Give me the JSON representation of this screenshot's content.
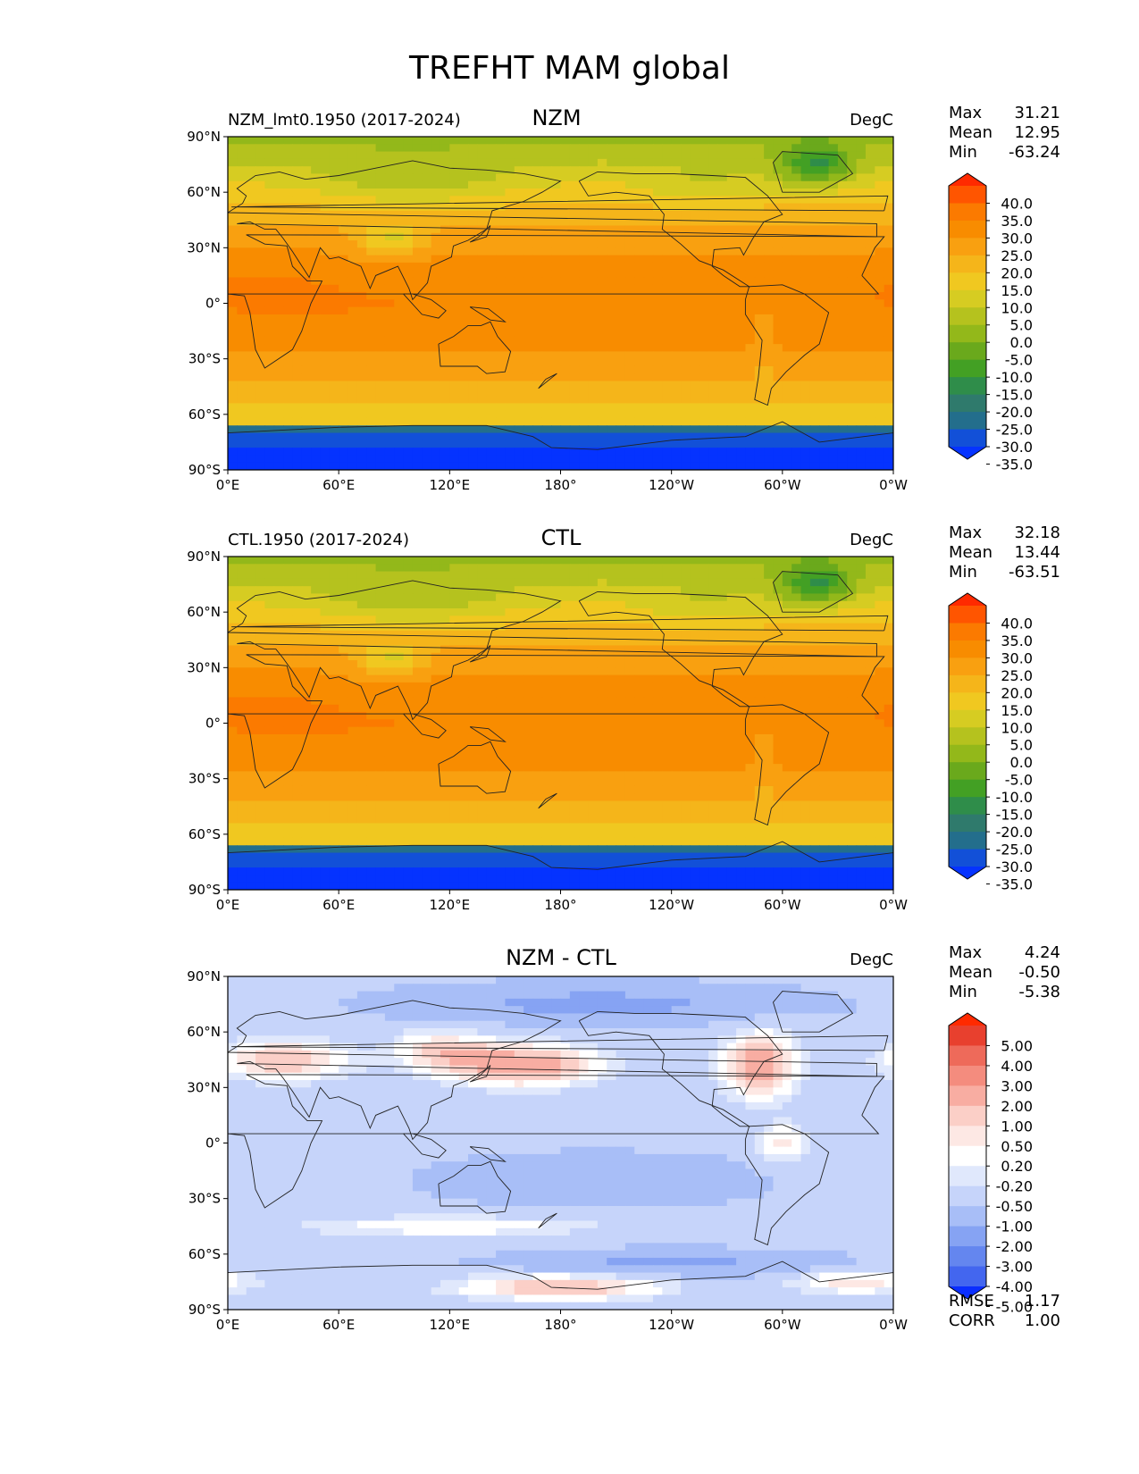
{
  "title": "TREFHT MAM global",
  "chart_data": [
    {
      "type": "heatmap",
      "panel_title": "NZM",
      "left_label": "NZM_lmt0.1950 (2017-2024)",
      "units": "DegC",
      "stats": {
        "max_label": "Max",
        "max": "31.21",
        "mean_label": "Mean",
        "mean": "12.95",
        "min_label": "Min",
        "min": "-63.24"
      },
      "xticks": [
        "0°E",
        "60°E",
        "120°E",
        "180°",
        "120°W",
        "60°W",
        "0°W"
      ],
      "yticks": [
        "90°N",
        "60°N",
        "30°N",
        "0°",
        "30°S",
        "60°S",
        "90°S"
      ],
      "xlim": [
        0,
        360
      ],
      "ylim": [
        -90,
        90
      ],
      "colorbar_levels": [
        "40.0",
        "35.0",
        "30.0",
        "25.0",
        "20.0",
        "15.0",
        "10.0",
        "5.0",
        "0.0",
        "-5.0",
        "-10.0",
        "-15.0",
        "-20.0",
        "-25.0",
        "-30.0",
        "-35.0"
      ],
      "colorbar_colors": [
        "#ff2a00",
        "#ff5500",
        "#fb7a00",
        "#f88c00",
        "#f9a010",
        "#f5b51a",
        "#f0c820",
        "#d6cc22",
        "#b5c21e",
        "#93b81a",
        "#6aa91c",
        "#43a024",
        "#2f8d4a",
        "#2f7a6c",
        "#236e8c",
        "#1250d8",
        "#0533ff"
      ],
      "colormap": "temperature"
    },
    {
      "type": "heatmap",
      "panel_title": "CTL",
      "left_label": "CTL.1950 (2017-2024)",
      "units": "DegC",
      "stats": {
        "max_label": "Max",
        "max": "32.18",
        "mean_label": "Mean",
        "mean": "13.44",
        "min_label": "Min",
        "min": "-63.51"
      },
      "xticks": [
        "0°E",
        "60°E",
        "120°E",
        "180°",
        "120°W",
        "60°W",
        "0°W"
      ],
      "yticks": [
        "90°N",
        "60°N",
        "30°N",
        "0°",
        "30°S",
        "60°S",
        "90°S"
      ],
      "xlim": [
        0,
        360
      ],
      "ylim": [
        -90,
        90
      ],
      "colorbar_levels": [
        "40.0",
        "35.0",
        "30.0",
        "25.0",
        "20.0",
        "15.0",
        "10.0",
        "5.0",
        "0.0",
        "-5.0",
        "-10.0",
        "-15.0",
        "-20.0",
        "-25.0",
        "-30.0",
        "-35.0"
      ],
      "colorbar_colors": [
        "#ff2a00",
        "#ff5500",
        "#fb7a00",
        "#f88c00",
        "#f9a010",
        "#f5b51a",
        "#f0c820",
        "#d6cc22",
        "#b5c21e",
        "#93b81a",
        "#6aa91c",
        "#43a024",
        "#2f8d4a",
        "#2f7a6c",
        "#236e8c",
        "#1250d8",
        "#0533ff"
      ],
      "colormap": "temperature"
    },
    {
      "type": "heatmap",
      "panel_title": "NZM - CTL",
      "left_label": "",
      "units": "DegC",
      "stats": {
        "max_label": "Max",
        "max": "4.24",
        "mean_label": "Mean",
        "mean": "-0.50",
        "min_label": "Min",
        "min": "-5.38"
      },
      "extra_stats": {
        "rmse_label": "RMSE",
        "rmse": "1.17",
        "corr_label": "CORR",
        "corr": "1.00"
      },
      "xticks": [
        "0°E",
        "60°E",
        "120°E",
        "180°",
        "120°W",
        "60°W",
        "0°W"
      ],
      "yticks": [
        "90°N",
        "60°N",
        "30°N",
        "0°",
        "30°S",
        "60°S",
        "90°S"
      ],
      "xlim": [
        0,
        360
      ],
      "ylim": [
        -90,
        90
      ],
      "colorbar_levels": [
        "5.00",
        "4.00",
        "3.00",
        "2.00",
        "1.00",
        "0.50",
        "0.20",
        "-0.20",
        "-0.50",
        "-1.00",
        "-2.00",
        "-3.00",
        "-4.00",
        "-5.00"
      ],
      "colorbar_colors": [
        "#ff2a00",
        "#e8402e",
        "#ee6a5a",
        "#f48c7e",
        "#f8ada2",
        "#fbcfc7",
        "#fde8e4",
        "#ffffff",
        "#e0e8fc",
        "#c6d4fa",
        "#a8bef7",
        "#86a3f3",
        "#6486ef",
        "#4366ef",
        "#0a2eff"
      ],
      "colormap": "difference"
    }
  ]
}
